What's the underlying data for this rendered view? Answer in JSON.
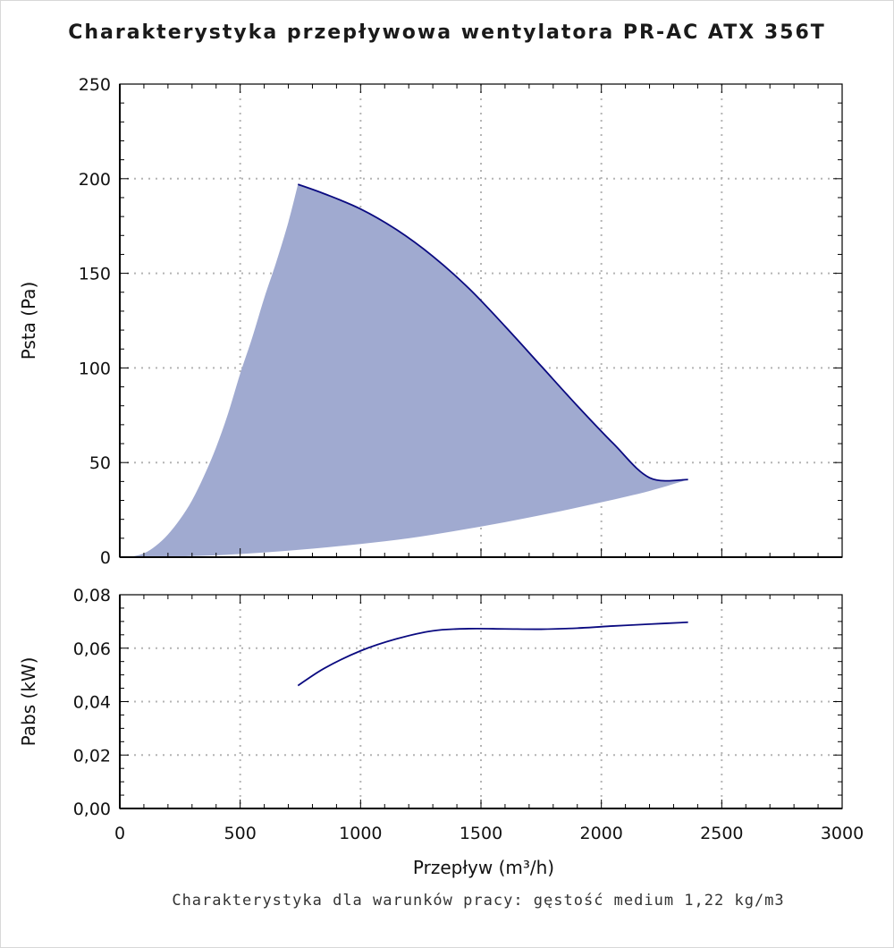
{
  "title": "Charakterystyka przepływowa wentylatora PR-AC ATX 356T",
  "footnote": "Charakterystyka dla warunków pracy: gęstość medium 1,22 kg/m3",
  "colors": {
    "area": "#a0aad0",
    "curve": "#0a0a80",
    "grid": "#b4b4b4",
    "axis": "#000000"
  },
  "chart_data": [
    {
      "type": "area",
      "name": "pressure",
      "ylabel": "Psta (Pa)",
      "xlabel": "",
      "xlim": [
        0,
        3000
      ],
      "ylim": [
        0,
        250
      ],
      "x_ticks": [
        0,
        500,
        1000,
        1500,
        2000,
        2500,
        3000
      ],
      "y_ticks": [
        0,
        50,
        100,
        150,
        200,
        250
      ],
      "y_tick_labels": [
        "0",
        "50",
        "100",
        "150",
        "200",
        "250"
      ],
      "grid": true,
      "upper_curve": {
        "x": [
          740,
          850,
          1000,
          1150,
          1300,
          1450,
          1600,
          1750,
          1900,
          2050,
          2200,
          2360
        ],
        "y": [
          197,
          192,
          184,
          173,
          159,
          142,
          122,
          101,
          80,
          60,
          42,
          41
        ]
      },
      "system_curve_left": {
        "x": [
          40,
          100,
          150,
          200,
          250,
          300,
          350,
          400,
          450,
          500,
          550,
          600,
          650,
          700,
          740
        ],
        "y": [
          0,
          2,
          6,
          12,
          20,
          30,
          43,
          58,
          76,
          97,
          116,
          137,
          156,
          177,
          197
        ]
      },
      "system_curve_right": {
        "x": [
          40,
          200,
          400,
          600,
          800,
          1000,
          1200,
          1400,
          1600,
          1800,
          2000,
          2200,
          2360
        ],
        "y": [
          0,
          0.3,
          1,
          2.5,
          4.5,
          7,
          10,
          14,
          18.5,
          23.5,
          29,
          35,
          41
        ]
      }
    },
    {
      "type": "line",
      "name": "power",
      "ylabel": "Pabs (kW)",
      "xlabel": "Przepływ (m³/h)",
      "xlim": [
        0,
        3000
      ],
      "ylim": [
        0,
        0.08
      ],
      "x_ticks": [
        0,
        500,
        1000,
        1500,
        2000,
        2500,
        3000
      ],
      "x_tick_labels": [
        "0",
        "500",
        "1000",
        "1500",
        "2000",
        "2500",
        "3000"
      ],
      "y_ticks": [
        0,
        0.02,
        0.04,
        0.06,
        0.08
      ],
      "y_tick_labels": [
        "0,00",
        "0,02",
        "0,04",
        "0,06",
        "0,08"
      ],
      "grid": true,
      "series": [
        {
          "x": [
            740,
            850,
            1000,
            1150,
            1300,
            1450,
            1600,
            1750,
            1900,
            2050,
            2200,
            2360
          ],
          "y": [
            0.046,
            0.0525,
            0.059,
            0.0635,
            0.0665,
            0.0673,
            0.0672,
            0.0671,
            0.0675,
            0.0683,
            0.069,
            0.0697
          ]
        }
      ]
    }
  ]
}
